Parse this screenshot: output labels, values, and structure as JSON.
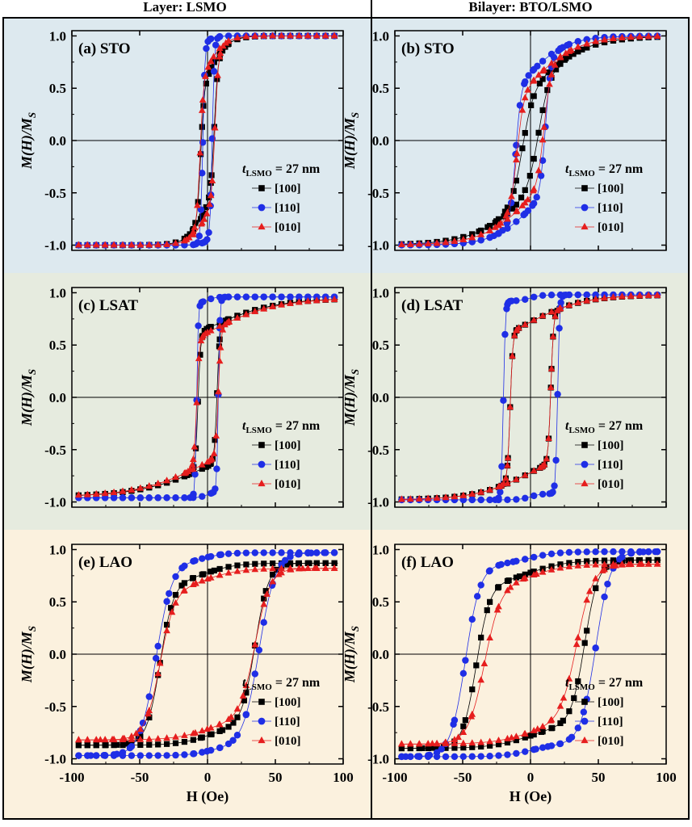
{
  "column_titles": [
    "Layer: LSMO",
    "Bilayer: BTO/LSMO"
  ],
  "ylabel": "M(H)/M",
  "ylabel_sub": "S",
  "xlabel": "H (Oe)",
  "legend": {
    "title_prefix": "t",
    "title_sub": "LSMO",
    "title_suffix": " = 27 nm",
    "entries": [
      "[100]",
      "[110]",
      "[010]"
    ]
  },
  "colors": {
    "series_100": "#000000",
    "series_110": "#1f2ee6",
    "series_010": "#e61e1e",
    "bg_STO": "#dde9ef",
    "bg_LSAT": "#e6ebdf",
    "bg_LAO": "#fbf1de"
  },
  "chart_data": [
    {
      "type": "line",
      "panel": "(a)",
      "substrate": "STO",
      "column": 0,
      "row": 0,
      "xlim": [
        -100,
        100
      ],
      "ylim": [
        -1.05,
        1.05
      ],
      "xticks": [
        -100,
        -50,
        0,
        50,
        100
      ],
      "yticks": [
        -1.0,
        -0.5,
        0.0,
        0.5,
        1.0
      ],
      "series": [
        {
          "name": "[100]",
          "Hc": 5,
          "width": 2.5,
          "tail": 14,
          "Ms": 1.0,
          "R": 0.62
        },
        {
          "name": "[110]",
          "Hc": 3.5,
          "width": 1.6,
          "tail": 7,
          "Ms": 1.0,
          "R": 0.96
        },
        {
          "name": "[010]",
          "Hc": 5.5,
          "width": 2.5,
          "tail": 13,
          "Ms": 1.0,
          "R": 0.7
        }
      ]
    },
    {
      "type": "line",
      "panel": "(b)",
      "substrate": "STO",
      "column": 1,
      "row": 0,
      "xlim": [
        -100,
        100
      ],
      "ylim": [
        -1.05,
        1.05
      ],
      "xticks": [
        -100,
        -50,
        0,
        50,
        100
      ],
      "yticks": [
        -1.0,
        -0.5,
        0.0,
        0.5,
        1.0
      ],
      "series": [
        {
          "name": "[100]",
          "Hc": 6,
          "width": 8,
          "tail": 40,
          "Ms": 1.0,
          "R": 0.5
        },
        {
          "name": "[110]",
          "Hc": 11,
          "width": 4,
          "tail": 28,
          "Ms": 1.0,
          "R": 0.65
        },
        {
          "name": "[010]",
          "Hc": 10,
          "width": 5,
          "tail": 35,
          "Ms": 1.0,
          "R": 0.55
        }
      ]
    },
    {
      "type": "line",
      "panel": "(c)",
      "substrate": "LSAT",
      "column": 0,
      "row": 1,
      "xlim": [
        -100,
        100
      ],
      "ylim": [
        -1.05,
        1.05
      ],
      "xticks": [
        -100,
        -50,
        0,
        50,
        100
      ],
      "yticks": [
        -1.0,
        -0.5,
        0.0,
        0.5,
        1.0
      ],
      "series": [
        {
          "name": "[100]",
          "Hc": 7,
          "width": 2,
          "tail": 50,
          "Ms": 0.95,
          "R": 0.66
        },
        {
          "name": "[110]",
          "Hc": 8,
          "width": 1.2,
          "tail": 6,
          "Ms": 0.96,
          "R": 0.93
        },
        {
          "name": "[010]",
          "Hc": 8,
          "width": 2,
          "tail": 50,
          "Ms": 0.95,
          "R": 0.62
        }
      ]
    },
    {
      "type": "line",
      "panel": "(d)",
      "substrate": "LSAT",
      "column": 1,
      "row": 1,
      "xlim": [
        -100,
        100
      ],
      "ylim": [
        -1.05,
        1.05
      ],
      "xticks": [
        -100,
        -50,
        0,
        50,
        100
      ],
      "yticks": [
        -1.0,
        -0.5,
        0.0,
        0.5,
        1.0
      ],
      "series": [
        {
          "name": "[100]",
          "Hc": 15,
          "width": 2,
          "tail": 40,
          "Ms": 0.98,
          "R": 0.72
        },
        {
          "name": "[110]",
          "Hc": 20,
          "width": 1.5,
          "tail": 8,
          "Ms": 0.98,
          "R": 0.95
        },
        {
          "name": "[010]",
          "Hc": 15,
          "width": 2,
          "tail": 40,
          "Ms": 0.98,
          "R": 0.72
        }
      ]
    },
    {
      "type": "line",
      "panel": "(e)",
      "substrate": "LAO",
      "column": 0,
      "row": 2,
      "xlim": [
        -100,
        100
      ],
      "ylim": [
        -1.05,
        1.05
      ],
      "xticks": [
        -100,
        -50,
        0,
        50,
        100
      ],
      "yticks": [
        -1.0,
        -0.5,
        0.0,
        0.5,
        1.0
      ],
      "series": [
        {
          "name": "[100]",
          "Hc": 35,
          "width": 10,
          "tail": 22,
          "Ms": 0.87,
          "R": 0.78
        },
        {
          "name": "[110]",
          "Hc": 38,
          "width": 12,
          "tail": 16,
          "Ms": 0.97,
          "R": 0.93
        },
        {
          "name": "[010]",
          "Hc": 35,
          "width": 11,
          "tail": 25,
          "Ms": 0.82,
          "R": 0.72
        }
      ]
    },
    {
      "type": "line",
      "panel": "(f)",
      "substrate": "LAO",
      "column": 1,
      "row": 2,
      "xlim": [
        -100,
        100
      ],
      "ylim": [
        -1.05,
        1.05
      ],
      "xticks": [
        -100,
        -50,
        0,
        50,
        100
      ],
      "yticks": [
        -1.0,
        -0.5,
        0.0,
        0.5,
        1.0
      ],
      "series": [
        {
          "name": "[100]",
          "Hc": 40,
          "width": 10,
          "tail": 28,
          "Ms": 0.9,
          "R": 0.78
        },
        {
          "name": "[110]",
          "Hc": 48,
          "width": 11,
          "tail": 20,
          "Ms": 0.98,
          "R": 0.92
        },
        {
          "name": "[010]",
          "Hc": 34,
          "width": 12,
          "tail": 28,
          "Ms": 0.86,
          "R": 0.75
        }
      ]
    }
  ]
}
